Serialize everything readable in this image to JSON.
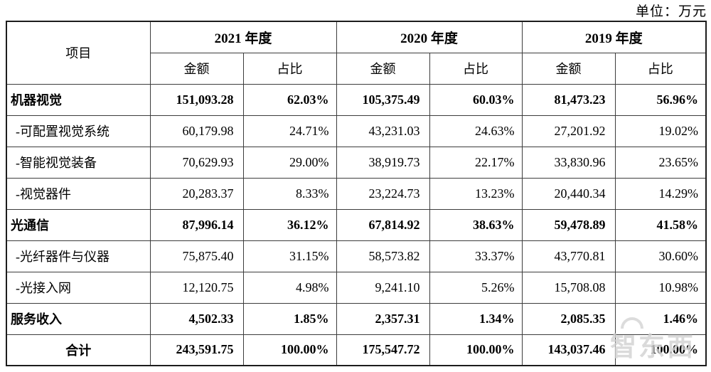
{
  "unit_label": "单位：万元",
  "table": {
    "item_header": "项目",
    "year_groups": [
      {
        "label": "2021 年度",
        "sub": [
          "金额",
          "占比"
        ]
      },
      {
        "label": "2020 年度",
        "sub": [
          "金额",
          "占比"
        ]
      },
      {
        "label": "2019 年度",
        "sub": [
          "金额",
          "占比"
        ]
      }
    ],
    "rows": [
      {
        "item": "机器视觉",
        "style": "parent",
        "bold": true,
        "values": [
          "151,093.28",
          "62.03%",
          "105,375.49",
          "60.03%",
          "81,473.23",
          "56.96%"
        ]
      },
      {
        "item": "-可配置视觉系统",
        "style": "sub",
        "bold": false,
        "values": [
          "60,179.98",
          "24.71%",
          "43,231.03",
          "24.63%",
          "27,201.92",
          "19.02%"
        ]
      },
      {
        "item": "-智能视觉装备",
        "style": "sub",
        "bold": false,
        "values": [
          "70,629.93",
          "29.00%",
          "38,919.73",
          "22.17%",
          "33,830.96",
          "23.65%"
        ]
      },
      {
        "item": "-视觉器件",
        "style": "sub",
        "bold": false,
        "values": [
          "20,283.37",
          "8.33%",
          "23,224.73",
          "13.23%",
          "20,440.34",
          "14.29%"
        ]
      },
      {
        "item": "光通信",
        "style": "parent",
        "bold": true,
        "values": [
          "87,996.14",
          "36.12%",
          "67,814.92",
          "38.63%",
          "59,478.89",
          "41.58%"
        ]
      },
      {
        "item": "-光纤器件与仪器",
        "style": "sub",
        "bold": false,
        "values": [
          "75,875.40",
          "31.15%",
          "58,573.82",
          "33.37%",
          "43,770.81",
          "30.60%"
        ]
      },
      {
        "item": "-光接入网",
        "style": "sub",
        "bold": false,
        "values": [
          "12,120.75",
          "4.98%",
          "9,241.10",
          "5.26%",
          "15,708.08",
          "10.98%"
        ]
      },
      {
        "item": "服务收入",
        "style": "parent",
        "bold": true,
        "values": [
          "4,502.33",
          "1.85%",
          "2,357.31",
          "1.34%",
          "2,085.35",
          "1.46%"
        ]
      },
      {
        "item": "合计",
        "style": "total",
        "bold": true,
        "values": [
          "243,591.75",
          "100.00%",
          "175,547.72",
          "100.00%",
          "143,037.46",
          "100.00%"
        ]
      }
    ]
  },
  "watermark": {
    "text": "智东西"
  }
}
